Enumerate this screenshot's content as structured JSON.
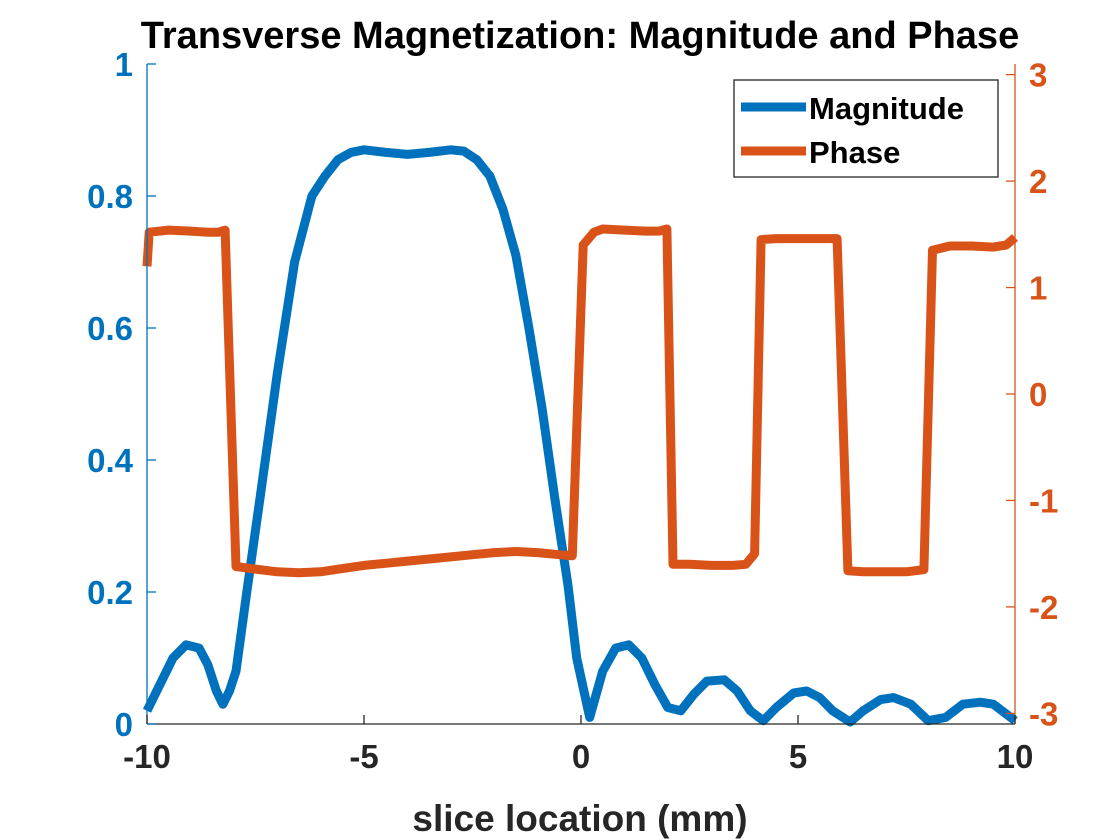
{
  "chart_data": {
    "type": "line",
    "title": "Transverse Magnetization:  Magnitude and Phase",
    "xlabel": "slice location (mm)",
    "ylabel_left": "",
    "ylabel_right": "",
    "xlim": [
      -10,
      10
    ],
    "ylim_left": [
      0,
      1
    ],
    "ylim_right": [
      -3.1,
      3.1
    ],
    "x_ticks": [
      "-10",
      "-5",
      "0",
      "5",
      "10"
    ],
    "y_ticks_left": [
      "0",
      "0.2",
      "0.4",
      "0.6",
      "0.8",
      "1"
    ],
    "y_ticks_right": [
      "-3",
      "-2",
      "-1",
      "0",
      "1",
      "2",
      "3"
    ],
    "grid": false,
    "legend_placement": "top-right",
    "colors": {
      "magnitude": "#0072BD",
      "phase": "#D95319",
      "left_axis": "#0072BD",
      "right_axis": "#D95319",
      "bottom_axis": "#262626"
    },
    "series": [
      {
        "name": "Magnitude",
        "axis": "left",
        "points": [
          [
            -10.0,
            0.02
          ],
          [
            -9.7,
            0.06
          ],
          [
            -9.4,
            0.1
          ],
          [
            -9.1,
            0.12
          ],
          [
            -8.8,
            0.115
          ],
          [
            -8.6,
            0.09
          ],
          [
            -8.4,
            0.05
          ],
          [
            -8.25,
            0.03
          ],
          [
            -8.1,
            0.05
          ],
          [
            -7.95,
            0.08
          ],
          [
            -7.7,
            0.2
          ],
          [
            -7.4,
            0.34
          ],
          [
            -7.0,
            0.53
          ],
          [
            -6.6,
            0.7
          ],
          [
            -6.2,
            0.8
          ],
          [
            -5.9,
            0.83
          ],
          [
            -5.6,
            0.855
          ],
          [
            -5.3,
            0.866
          ],
          [
            -5.0,
            0.87
          ],
          [
            -4.5,
            0.866
          ],
          [
            -4.0,
            0.863
          ],
          [
            -3.5,
            0.866
          ],
          [
            -3.0,
            0.87
          ],
          [
            -2.7,
            0.868
          ],
          [
            -2.4,
            0.855
          ],
          [
            -2.1,
            0.83
          ],
          [
            -1.8,
            0.78
          ],
          [
            -1.5,
            0.71
          ],
          [
            -1.2,
            0.6
          ],
          [
            -0.9,
            0.48
          ],
          [
            -0.6,
            0.34
          ],
          [
            -0.3,
            0.21
          ],
          [
            -0.1,
            0.1
          ],
          [
            0.2,
            0.01
          ],
          [
            0.5,
            0.08
          ],
          [
            0.8,
            0.115
          ],
          [
            1.1,
            0.12
          ],
          [
            1.4,
            0.1
          ],
          [
            1.7,
            0.06
          ],
          [
            2.0,
            0.025
          ],
          [
            2.3,
            0.02
          ],
          [
            2.6,
            0.045
          ],
          [
            2.9,
            0.065
          ],
          [
            3.3,
            0.067
          ],
          [
            3.6,
            0.05
          ],
          [
            3.9,
            0.02
          ],
          [
            4.2,
            0.005
          ],
          [
            4.5,
            0.025
          ],
          [
            4.9,
            0.047
          ],
          [
            5.2,
            0.05
          ],
          [
            5.5,
            0.04
          ],
          [
            5.8,
            0.02
          ],
          [
            6.2,
            0.003
          ],
          [
            6.5,
            0.02
          ],
          [
            6.9,
            0.037
          ],
          [
            7.2,
            0.04
          ],
          [
            7.6,
            0.03
          ],
          [
            8.0,
            0.005
          ],
          [
            8.4,
            0.01
          ],
          [
            8.8,
            0.03
          ],
          [
            9.2,
            0.033
          ],
          [
            9.5,
            0.03
          ],
          [
            9.8,
            0.015
          ],
          [
            10.0,
            0.005
          ]
        ]
      },
      {
        "name": "Phase",
        "axis": "right",
        "points": [
          [
            -10.0,
            1.2
          ],
          [
            -9.95,
            1.52
          ],
          [
            -9.5,
            1.54
          ],
          [
            -9.0,
            1.53
          ],
          [
            -8.6,
            1.52
          ],
          [
            -8.35,
            1.52
          ],
          [
            -8.2,
            1.54
          ],
          [
            -7.95,
            -1.62
          ],
          [
            -7.6,
            -1.64
          ],
          [
            -7.0,
            -1.67
          ],
          [
            -6.5,
            -1.68
          ],
          [
            -6.0,
            -1.67
          ],
          [
            -5.5,
            -1.64
          ],
          [
            -5.0,
            -1.61
          ],
          [
            -4.5,
            -1.59
          ],
          [
            -4.0,
            -1.57
          ],
          [
            -3.5,
            -1.55
          ],
          [
            -3.0,
            -1.53
          ],
          [
            -2.5,
            -1.51
          ],
          [
            -2.0,
            -1.49
          ],
          [
            -1.5,
            -1.48
          ],
          [
            -1.0,
            -1.49
          ],
          [
            -0.5,
            -1.51
          ],
          [
            -0.2,
            -1.52
          ],
          [
            0.05,
            1.4
          ],
          [
            0.3,
            1.52
          ],
          [
            0.5,
            1.55
          ],
          [
            1.0,
            1.54
          ],
          [
            1.5,
            1.53
          ],
          [
            1.8,
            1.53
          ],
          [
            1.98,
            1.55
          ],
          [
            2.12,
            -1.6
          ],
          [
            2.5,
            -1.6
          ],
          [
            3.0,
            -1.61
          ],
          [
            3.5,
            -1.61
          ],
          [
            3.8,
            -1.6
          ],
          [
            4.0,
            -1.5
          ],
          [
            4.15,
            1.45
          ],
          [
            4.5,
            1.46
          ],
          [
            5.0,
            1.46
          ],
          [
            5.5,
            1.46
          ],
          [
            5.9,
            1.46
          ],
          [
            6.15,
            -1.66
          ],
          [
            6.5,
            -1.67
          ],
          [
            7.0,
            -1.67
          ],
          [
            7.5,
            -1.67
          ],
          [
            7.9,
            -1.65
          ],
          [
            8.1,
            1.35
          ],
          [
            8.5,
            1.39
          ],
          [
            9.0,
            1.39
          ],
          [
            9.5,
            1.38
          ],
          [
            9.8,
            1.4
          ],
          [
            10.0,
            1.47
          ]
        ]
      }
    ]
  }
}
